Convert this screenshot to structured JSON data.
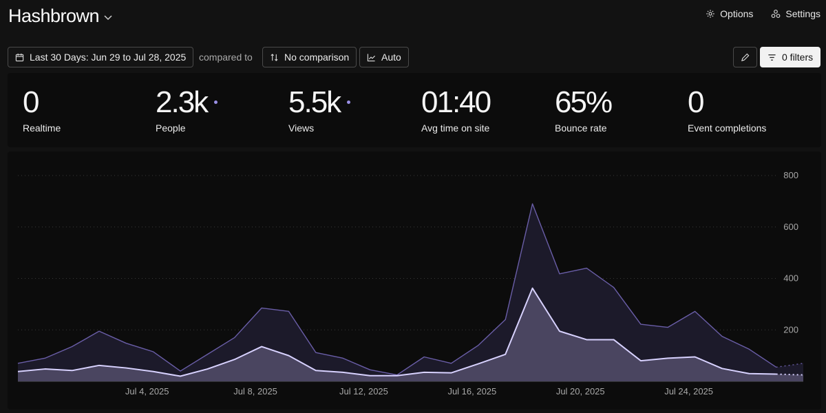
{
  "header": {
    "title": "Hashbrown",
    "options_label": "Options",
    "settings_label": "Settings"
  },
  "toolbar": {
    "date_range_label": "Last 30 Days: Jun 29 to Jul 28, 2025",
    "compared_to_label": "compared to",
    "comparison_label": "No comparison",
    "interval_label": "Auto",
    "filters_label": "0 filters"
  },
  "stats": [
    {
      "value": "0",
      "label": "Realtime",
      "has_dot": false
    },
    {
      "value": "2.3k",
      "label": "People",
      "has_dot": true
    },
    {
      "value": "5.5k",
      "label": "Views",
      "has_dot": true
    },
    {
      "value": "01:40",
      "label": "Avg time on site",
      "has_dot": false
    },
    {
      "value": "65%",
      "label": "Bounce rate",
      "has_dot": false
    },
    {
      "value": "0",
      "label": "Event completions",
      "has_dot": false
    }
  ],
  "colors": {
    "views_line": "#6a5ea8",
    "views_fill": "#1c1a2a",
    "people_line": "#d8d2ff",
    "people_fill": "#4a4560",
    "dot": "#9a90e6"
  },
  "chart_data": {
    "type": "area",
    "x": [
      "Jun 29",
      "Jun 30",
      "Jul 1",
      "Jul 2",
      "Jul 3",
      "Jul 4",
      "Jul 5",
      "Jul 6",
      "Jul 7",
      "Jul 8",
      "Jul 9",
      "Jul 10",
      "Jul 11",
      "Jul 12",
      "Jul 13",
      "Jul 14",
      "Jul 15",
      "Jul 16",
      "Jul 17",
      "Jul 18",
      "Jul 19",
      "Jul 20",
      "Jul 21",
      "Jul 22",
      "Jul 23",
      "Jul 24",
      "Jul 25",
      "Jul 26",
      "Jul 27",
      "Jul 28"
    ],
    "x_tick_labels": [
      {
        "label": "Jul 4, 2025",
        "index": 5
      },
      {
        "label": "Jul 8, 2025",
        "index": 9
      },
      {
        "label": "Jul 12, 2025",
        "index": 13
      },
      {
        "label": "Jul 16, 2025",
        "index": 17
      },
      {
        "label": "Jul 20, 2025",
        "index": 21
      },
      {
        "label": "Jul 24, 2025",
        "index": 25
      }
    ],
    "series": [
      {
        "name": "Views",
        "values": [
          70,
          90,
          135,
          195,
          148,
          115,
          40,
          105,
          170,
          285,
          272,
          112,
          90,
          45,
          25,
          95,
          70,
          140,
          240,
          690,
          418,
          440,
          365,
          222,
          210,
          272,
          175,
          125,
          55,
          70
        ]
      },
      {
        "name": "People",
        "values": [
          38,
          48,
          42,
          62,
          52,
          38,
          20,
          48,
          85,
          135,
          100,
          42,
          35,
          22,
          22,
          35,
          33,
          68,
          105,
          362,
          195,
          162,
          162,
          80,
          90,
          95,
          50,
          30,
          28,
          25
        ]
      }
    ],
    "partial_from_index": 28,
    "y_ticks": [
      200,
      400,
      600,
      800
    ],
    "ylim": [
      0,
      800
    ],
    "grid": true
  }
}
